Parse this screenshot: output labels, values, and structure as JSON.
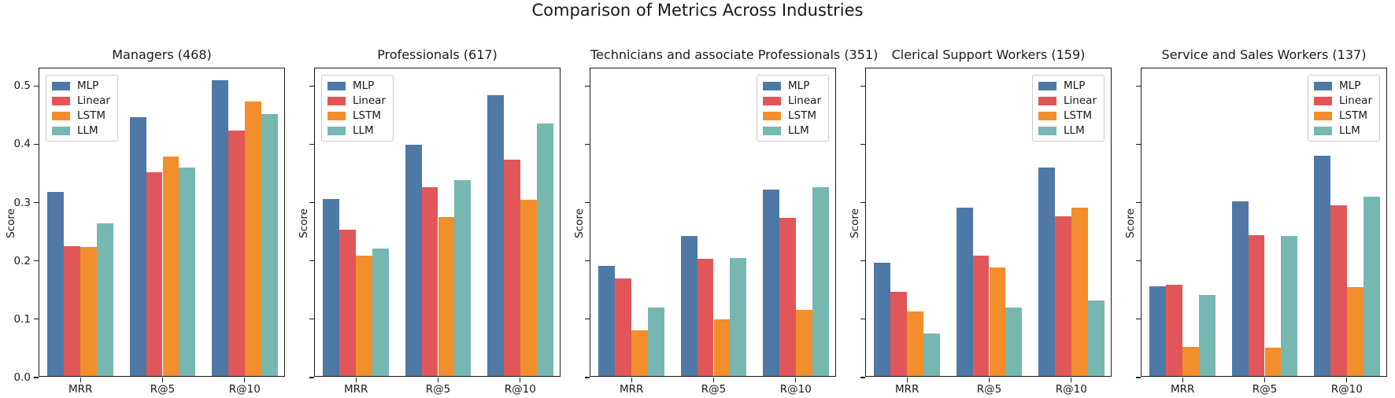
{
  "figure": {
    "title": "Comparison of Metrics Across Industries"
  },
  "colors": {
    "MLP": "#4E79A7",
    "Linear": "#E15759",
    "LSTM": "#F28E2B",
    "LLM": "#76B7B2",
    "spine": "#1c1c1c",
    "text": "#1a1a1a"
  },
  "chart_data": [
    {
      "type": "bar",
      "title": "Managers (468)",
      "ylabel": "Score",
      "categories": [
        "MRR",
        "R@5",
        "R@10"
      ],
      "series": [
        {
          "name": "MLP",
          "values": [
            0.315,
            0.444,
            0.507
          ]
        },
        {
          "name": "Linear",
          "values": [
            0.223,
            0.349,
            0.421
          ]
        },
        {
          "name": "LSTM",
          "values": [
            0.221,
            0.376,
            0.471
          ]
        },
        {
          "name": "LLM",
          "values": [
            0.262,
            0.357,
            0.449
          ]
        }
      ],
      "ylim": [
        0,
        0.53
      ],
      "yticks": [
        0.0,
        0.1,
        0.2,
        0.3,
        0.4,
        0.5
      ],
      "ytick_labels": [
        "0.0",
        "0.1",
        "0.2",
        "0.3",
        "0.4",
        "0.5"
      ],
      "show_ytick_labels": true,
      "legend_position": "upper-left",
      "grid": false
    },
    {
      "type": "bar",
      "title": "Professionals (617)",
      "ylabel": "Score",
      "categories": [
        "MRR",
        "R@5",
        "R@10"
      ],
      "series": [
        {
          "name": "MLP",
          "values": [
            0.304,
            0.397,
            0.481
          ]
        },
        {
          "name": "Linear",
          "values": [
            0.251,
            0.324,
            0.371
          ]
        },
        {
          "name": "LSTM",
          "values": [
            0.206,
            0.273,
            0.302
          ]
        },
        {
          "name": "LLM",
          "values": [
            0.218,
            0.336,
            0.433
          ]
        }
      ],
      "ylim": [
        0,
        0.53
      ],
      "yticks": [
        0.0,
        0.1,
        0.2,
        0.3,
        0.4,
        0.5
      ],
      "ytick_labels": [],
      "show_ytick_labels": false,
      "legend_position": "upper-left",
      "grid": false
    },
    {
      "type": "bar",
      "title": "Technicians and associate Professionals (351)",
      "ylabel": "Score",
      "categories": [
        "MRR",
        "R@5",
        "R@10"
      ],
      "series": [
        {
          "name": "MLP",
          "values": [
            0.189,
            0.24,
            0.319
          ]
        },
        {
          "name": "Linear",
          "values": [
            0.167,
            0.201,
            0.271
          ]
        },
        {
          "name": "LSTM",
          "values": [
            0.078,
            0.097,
            0.113
          ]
        },
        {
          "name": "LLM",
          "values": [
            0.117,
            0.202,
            0.324
          ]
        }
      ],
      "ylim": [
        0,
        0.53
      ],
      "yticks": [
        0.0,
        0.1,
        0.2,
        0.3,
        0.4,
        0.5
      ],
      "ytick_labels": [],
      "show_ytick_labels": false,
      "legend_position": "upper-right",
      "grid": false
    },
    {
      "type": "bar",
      "title": "Clerical Support Workers (159)",
      "ylabel": "Score",
      "categories": [
        "MRR",
        "R@5",
        "R@10"
      ],
      "series": [
        {
          "name": "MLP",
          "values": [
            0.194,
            0.288,
            0.357
          ]
        },
        {
          "name": "Linear",
          "values": [
            0.144,
            0.206,
            0.274
          ]
        },
        {
          "name": "LSTM",
          "values": [
            0.11,
            0.186,
            0.288
          ]
        },
        {
          "name": "LLM",
          "values": [
            0.073,
            0.118,
            0.13
          ]
        }
      ],
      "ylim": [
        0,
        0.53
      ],
      "yticks": [
        0.0,
        0.1,
        0.2,
        0.3,
        0.4,
        0.5
      ],
      "ytick_labels": [],
      "show_ytick_labels": false,
      "legend_position": "upper-right",
      "grid": false
    },
    {
      "type": "bar",
      "title": "Service and Sales Workers (137)",
      "ylabel": "Score",
      "categories": [
        "MRR",
        "R@5",
        "R@10"
      ],
      "series": [
        {
          "name": "MLP",
          "values": [
            0.154,
            0.299,
            0.377
          ]
        },
        {
          "name": "Linear",
          "values": [
            0.156,
            0.241,
            0.293
          ]
        },
        {
          "name": "LSTM",
          "values": [
            0.05,
            0.049,
            0.152
          ]
        },
        {
          "name": "LLM",
          "values": [
            0.139,
            0.24,
            0.307
          ]
        }
      ],
      "ylim": [
        0,
        0.53
      ],
      "yticks": [
        0.0,
        0.1,
        0.2,
        0.3,
        0.4,
        0.5
      ],
      "ytick_labels": [],
      "show_ytick_labels": false,
      "legend_position": "upper-right",
      "grid": false
    }
  ]
}
